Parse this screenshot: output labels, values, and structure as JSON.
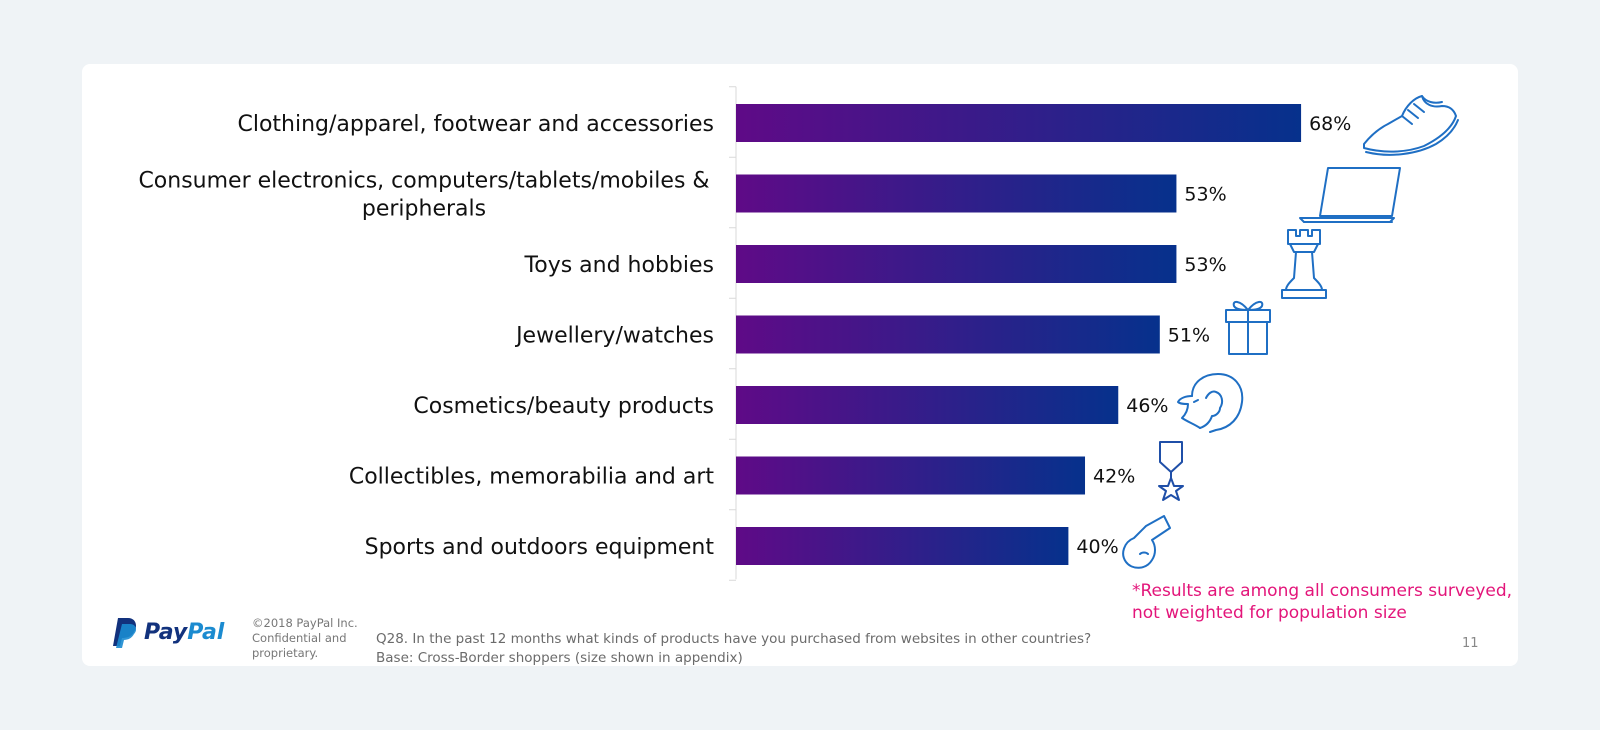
{
  "chart_data": {
    "type": "bar",
    "orientation": "horizontal",
    "categories": [
      "Clothing/apparel, footwear and accessories",
      "Consumer electronics, computers/tablets/mobiles & peripherals",
      "Toys and hobbies",
      "Jewellery/watches",
      "Cosmetics/beauty products",
      "Collectibles, memorabilia and art",
      "Sports and outdoors equipment"
    ],
    "category_lines": [
      [
        "Clothing/apparel, footwear and accessories"
      ],
      [
        "Consumer electronics, computers/tablets/mobiles &",
        "peripherals"
      ],
      [
        "Toys and hobbies"
      ],
      [
        "Jewellery/watches"
      ],
      [
        "Cosmetics/beauty products"
      ],
      [
        "Collectibles, memorabilia and art"
      ],
      [
        "Sports and outdoors equipment"
      ]
    ],
    "values": [
      68,
      53,
      53,
      51,
      46,
      42,
      40
    ],
    "value_labels": [
      "68%",
      "53%",
      "53%",
      "51%",
      "46%",
      "42%",
      "40%"
    ],
    "xlim": [
      0,
      100
    ],
    "grid": false,
    "bar_gradient": [
      "#5f0a87",
      "#06318c"
    ],
    "icons": [
      "sneaker-icon",
      "laptop-icon",
      "chess-rook-icon",
      "gift-box-icon",
      "woman-face-icon",
      "medal-icon",
      "whistle-icon"
    ]
  },
  "note": {
    "line1": "*Results are among all consumers surveyed,",
    "line2": "not weighted for population size",
    "color": "#e3157a"
  },
  "footer": {
    "logo_text_pay": "Pay",
    "logo_text_pal": "Pal",
    "copyright_line1": "©2018 PayPal Inc.",
    "copyright_line2": "Confidential and",
    "copyright_line3": "proprietary.",
    "question": "Q28. In the past 12 months what kinds of products have you purchased from websites in other countries?",
    "base": "Base: Cross-Border shoppers (size shown in appendix)",
    "page_number": "11"
  }
}
